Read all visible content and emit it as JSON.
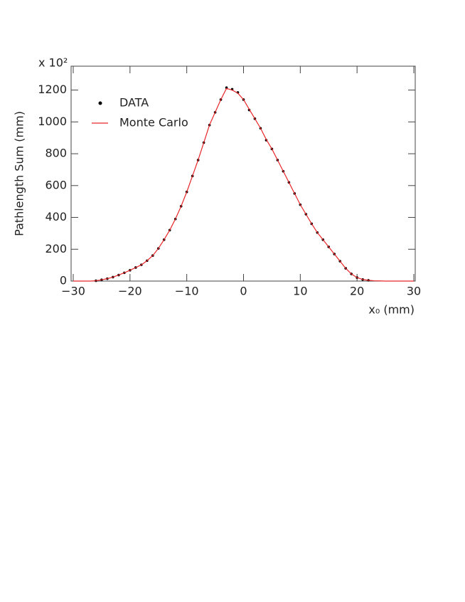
{
  "chart_data": {
    "type": "line",
    "y_label": "Pathlength Sum (mm)",
    "x_label": "x₀ (mm)",
    "y_multiplier": "x 10²",
    "xlim": [
      -30,
      30
    ],
    "xticks": [
      {
        "value": -30,
        "label": "−30"
      },
      {
        "value": -20,
        "label": "−20"
      },
      {
        "value": -10,
        "label": "−10"
      },
      0,
      10,
      20,
      30
    ],
    "ylim": [
      0,
      1350
    ],
    "yticks": [
      0,
      200,
      400,
      600,
      800,
      1000,
      1200
    ],
    "legend": "upper left",
    "series": [
      {
        "name": "DATA",
        "color": "#000000",
        "marker": true,
        "x": [
          -26,
          -25,
          -24,
          -23,
          -22,
          -21,
          -20,
          -19,
          -18,
          -17,
          -16,
          -15,
          -14,
          -13,
          -12,
          -11,
          -10,
          -9,
          -8,
          -7,
          -6,
          -5,
          -4,
          -3,
          -2,
          -1,
          0,
          1,
          2,
          3,
          4,
          5,
          6,
          7,
          8,
          9,
          10,
          11,
          12,
          13,
          14,
          15,
          16,
          17,
          18,
          19,
          20,
          21,
          22
        ],
        "values": [
          2,
          8,
          15,
          25,
          38,
          52,
          68,
          85,
          102,
          128,
          160,
          205,
          260,
          320,
          390,
          470,
          560,
          660,
          760,
          870,
          980,
          1060,
          1140,
          1215,
          1205,
          1185,
          1140,
          1075,
          1020,
          960,
          885,
          830,
          760,
          690,
          620,
          550,
          480,
          420,
          360,
          305,
          260,
          215,
          170,
          125,
          80,
          45,
          22,
          10,
          5
        ]
      },
      {
        "name": "Monte Carlo",
        "color": "#e8262a",
        "marker": false,
        "x": [
          -30,
          -29,
          -28,
          -27,
          -26,
          -25,
          -24,
          -23,
          -22,
          -21,
          -20,
          -19,
          -18,
          -17,
          -16,
          -15,
          -14,
          -13,
          -12,
          -11,
          -10,
          -9,
          -8,
          -7,
          -6,
          -5,
          -4,
          -3,
          -2,
          -1,
          0,
          1,
          2,
          3,
          4,
          5,
          6,
          7,
          8,
          9,
          10,
          11,
          12,
          13,
          14,
          15,
          16,
          17,
          18,
          19,
          20,
          21,
          22,
          23,
          24,
          25,
          26,
          27,
          28,
          29,
          30
        ],
        "values": [
          0,
          0,
          0,
          0,
          2,
          8,
          15,
          25,
          38,
          52,
          68,
          85,
          102,
          128,
          160,
          205,
          260,
          320,
          390,
          470,
          560,
          660,
          760,
          870,
          980,
          1060,
          1140,
          1210,
          1200,
          1180,
          1140,
          1080,
          1020,
          960,
          890,
          830,
          760,
          690,
          620,
          550,
          480,
          420,
          360,
          305,
          260,
          215,
          170,
          125,
          80,
          45,
          22,
          10,
          5,
          2,
          1,
          0,
          0,
          0,
          0,
          0,
          0
        ]
      }
    ]
  }
}
